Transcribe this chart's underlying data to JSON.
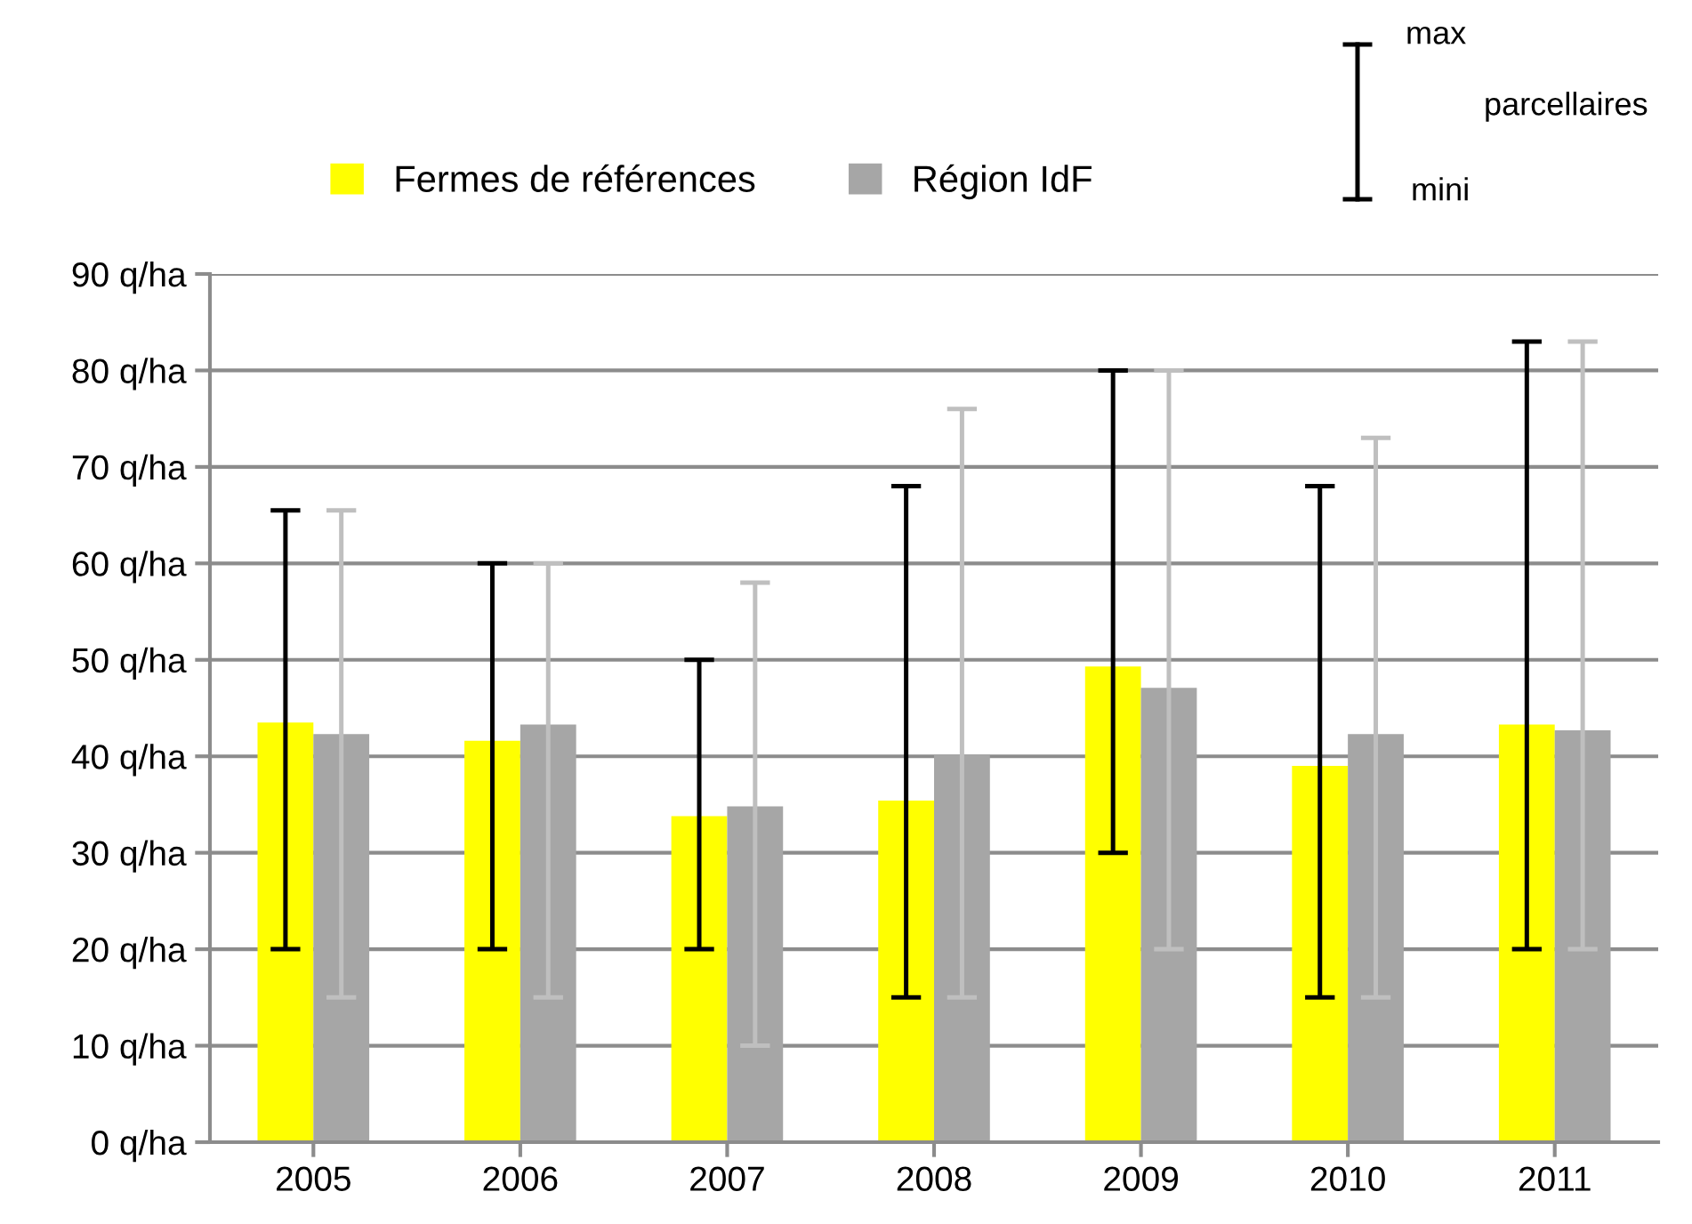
{
  "chart_data": {
    "type": "bar",
    "categories": [
      "2005",
      "2006",
      "2007",
      "2008",
      "2009",
      "2010",
      "2011"
    ],
    "series": [
      {
        "name": "Fermes de références",
        "color": "#ffff00",
        "values": [
          43.5,
          41.6,
          33.8,
          35.4,
          49.3,
          39.0,
          43.3
        ],
        "errors": [
          [
            20,
            65.5
          ],
          [
            20,
            60
          ],
          [
            20,
            50
          ],
          [
            15,
            68
          ],
          [
            30,
            80
          ],
          [
            15,
            68
          ],
          [
            20,
            83
          ]
        ]
      },
      {
        "name": "Région IdF",
        "color": "#a6a6a6",
        "values": [
          42.3,
          43.3,
          34.8,
          40.2,
          47.1,
          42.3,
          42.7
        ],
        "errors": [
          [
            15,
            65.5
          ],
          [
            15,
            60
          ],
          [
            10,
            58
          ],
          [
            15,
            76
          ],
          [
            20,
            80
          ],
          [
            15,
            73
          ],
          [
            20,
            83
          ]
        ]
      }
    ],
    "ylim": [
      0,
      90
    ],
    "yticks": [
      {
        "value": 0,
        "label": "0 q/ha"
      },
      {
        "value": 10,
        "label": "10 q/ha"
      },
      {
        "value": 20,
        "label": "20 q/ha"
      },
      {
        "value": 30,
        "label": "30 q/ha"
      },
      {
        "value": 40,
        "label": "40 q/ha"
      },
      {
        "value": 50,
        "label": "50 q/ha"
      },
      {
        "value": 60,
        "label": "60 q/ha"
      },
      {
        "value": 70,
        "label": "70 q/ha"
      },
      {
        "value": 80,
        "label": "80 q/ha"
      },
      {
        "value": 90,
        "label": "90 q/ha"
      }
    ],
    "grid": "y",
    "legend": "top",
    "annotations": [
      "max",
      "parcellaires",
      "mini"
    ]
  }
}
